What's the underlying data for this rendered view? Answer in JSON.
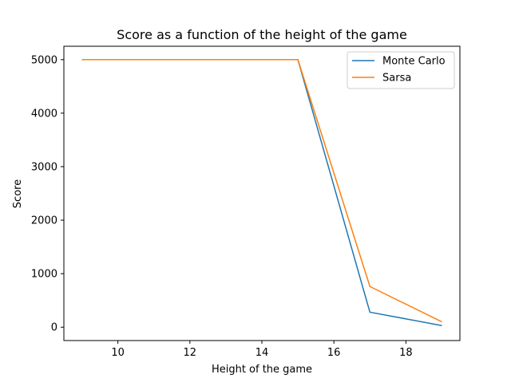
{
  "chart_data": {
    "type": "line",
    "title": "Score as a function of the height of the game",
    "xlabel": "Height of the game",
    "ylabel": "Score",
    "xlim": [
      8.5,
      19.5
    ],
    "ylim": [
      -250,
      5250
    ],
    "xticks": [
      10,
      12,
      14,
      16,
      18
    ],
    "yticks": [
      0,
      1000,
      2000,
      3000,
      4000,
      5000
    ],
    "x": [
      9,
      15,
      17,
      19
    ],
    "series": [
      {
        "name": "Monte Carlo",
        "color": "#1f77b4",
        "values": [
          5000,
          5000,
          280,
          30
        ]
      },
      {
        "name": "Sarsa",
        "color": "#ff7f0e",
        "values": [
          5000,
          5000,
          760,
          100
        ]
      }
    ],
    "legend": "top-right",
    "grid": false
  }
}
